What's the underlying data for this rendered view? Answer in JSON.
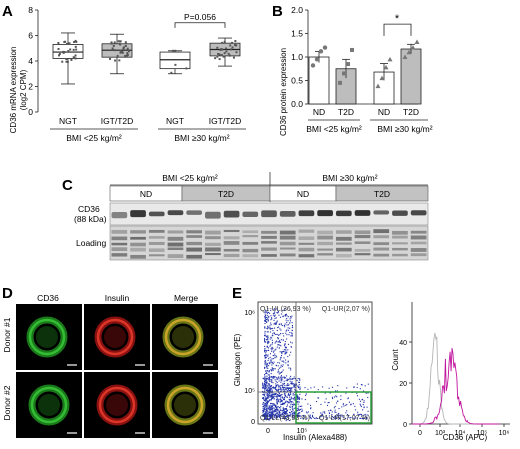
{
  "panels": {
    "A": "A",
    "B": "B",
    "C": "C",
    "D": "D",
    "E": "E"
  },
  "chart_data": [
    {
      "id": "A",
      "type": "box",
      "ylabel": "CD36 mRNA expression (log2 CPM)",
      "ylabel_line1": "CD36 mRNA expression",
      "ylabel_line2": "(log2 CPM)",
      "ylim": [
        0,
        8
      ],
      "yticks": [
        "0",
        "2",
        "4",
        "6",
        "8"
      ],
      "categories": [
        "NGT",
        "IGT/T2D",
        "NGT",
        "IGT/T2D"
      ],
      "groups": [
        "BMI <25 kg/m²",
        "BMI ≥30 kg/m²"
      ],
      "annotation": "P=0.056",
      "boxes": [
        {
          "min": 2.2,
          "q1": 4.2,
          "median": 4.7,
          "q3": 5.3,
          "max": 6.2,
          "fill": "#ffffff"
        },
        {
          "min": 3.0,
          "q1": 4.3,
          "median": 4.85,
          "q3": 5.35,
          "max": 6.1,
          "fill": "#bdbdbd"
        },
        {
          "min": 3.0,
          "q1": 3.4,
          "median": 4.1,
          "q3": 4.7,
          "max": 4.8,
          "fill": "#ffffff"
        },
        {
          "min": 3.6,
          "q1": 4.4,
          "median": 4.9,
          "q3": 5.4,
          "max": 5.8,
          "fill": "#bdbdbd"
        }
      ]
    },
    {
      "id": "B",
      "type": "bar",
      "ylabel": "CD36 protein expression",
      "ylim": [
        0,
        2.0
      ],
      "yticks": [
        "0.0",
        "0.5",
        "1.0",
        "1.5",
        "2.0"
      ],
      "categories": [
        "ND",
        "T2D",
        "ND",
        "T2D"
      ],
      "groups": [
        "BMI <25 kg/m²",
        "BMI ≥30 kg/m²"
      ],
      "values": [
        1.0,
        0.75,
        0.68,
        1.17
      ],
      "errors": [
        0.12,
        0.2,
        0.18,
        0.1
      ],
      "fills": [
        "#ffffff",
        "#bdbdbd",
        "#ffffff",
        "#bdbdbd"
      ],
      "points": [
        [
          0.82,
          0.95,
          1.12,
          1.2
        ],
        [
          0.45,
          0.65,
          0.85,
          1.15
        ],
        [
          0.38,
          0.55,
          0.78,
          0.95
        ],
        [
          1.0,
          1.1,
          1.2,
          1.32
        ]
      ],
      "annotation": "*"
    }
  ],
  "panelC": {
    "group_low": "BMI <25 kg/m²",
    "group_high": "BMI ≥30 kg/m²",
    "nd": "ND",
    "t2d": "T2D",
    "nd2": "ND",
    "t2d2": "T2D",
    "cd36": "CD36",
    "kda": "(88 kDa)",
    "loading": "Loading"
  },
  "panelD": {
    "col1": "CD36",
    "col2": "Insulin",
    "col3": "Merge",
    "row1": "Donor #1",
    "row2": "Donor #2"
  },
  "panelE": {
    "ylabel": "Glucagon (PE)",
    "xlabel": "Insulin (Alexa488)",
    "ul": "Q1-UL(36,93 %)",
    "ur": "Q1-UR(2,07 %)",
    "ll": "Q1-LL(43,93 %)",
    "lr": "Q1-LR(17,07 %)",
    "dot_ticks_y": [
      "10⁶",
      "10⁵",
      "0"
    ],
    "dot_ticks_x": [
      "0",
      "10⁵"
    ],
    "hist_ylabel": "Count",
    "hist_xlabel": "CD36 (APC)",
    "hist_ticks_y": [
      "40",
      "20",
      "0"
    ],
    "hist_ticks_x": [
      "0",
      "10³",
      "10⁴",
      "10⁵",
      "10⁶"
    ]
  }
}
